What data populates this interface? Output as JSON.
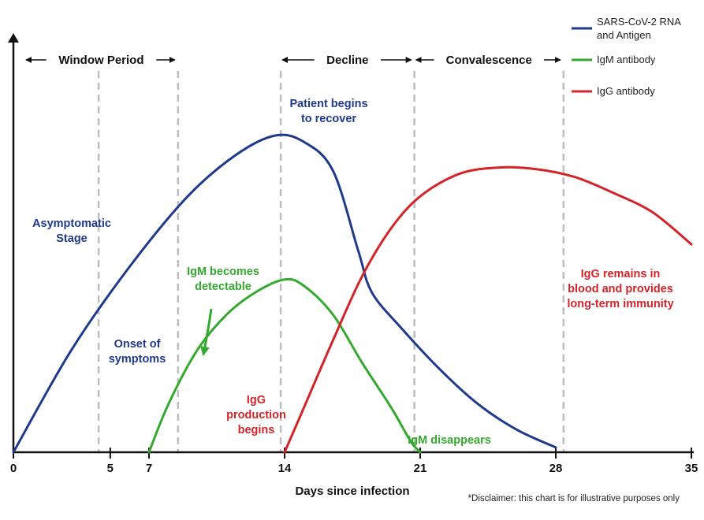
{
  "colors": {
    "rna": "#1f3a8a",
    "igm": "#35a82f",
    "igg": "#d3242a",
    "dashed": "#bdbdbd",
    "axis": "#111111"
  },
  "chart_data": {
    "type": "line",
    "xlabel": "Days since infection",
    "x_ticks": [
      0,
      5,
      7,
      14,
      21,
      28,
      35
    ],
    "xlim": [
      0,
      35
    ],
    "y_axis": "unlabeled (relative level)",
    "ylim": [
      0,
      100
    ],
    "grid": false,
    "legend_position": "top-right",
    "series": [
      {
        "name": "SARS-CoV-2 RNA and Antigen",
        "color": "#1f3a8a",
        "points": [
          [
            0,
            0
          ],
          [
            3,
            32
          ],
          [
            6,
            58
          ],
          [
            9,
            80
          ],
          [
            11.5,
            93
          ],
          [
            13.5,
            99
          ],
          [
            15,
            97
          ],
          [
            16.5,
            88
          ],
          [
            17.8,
            63
          ],
          [
            18.5,
            50
          ],
          [
            20,
            39
          ],
          [
            22,
            26
          ],
          [
            24,
            15
          ],
          [
            26,
            7
          ],
          [
            28,
            1.5
          ]
        ]
      },
      {
        "name": "IgM antibody",
        "color": "#35a82f",
        "points": [
          [
            7,
            0
          ],
          [
            8,
            15
          ],
          [
            9.5,
            32
          ],
          [
            11,
            43
          ],
          [
            12.5,
            50
          ],
          [
            14,
            54
          ],
          [
            15,
            52
          ],
          [
            16.5,
            43
          ],
          [
            18,
            28
          ],
          [
            19.5,
            14
          ],
          [
            20.5,
            3.5
          ],
          [
            21,
            0
          ]
        ]
      },
      {
        "name": "IgG antibody",
        "color": "#d3242a",
        "points": [
          [
            14,
            0
          ],
          [
            15,
            14
          ],
          [
            16.5,
            35
          ],
          [
            18,
            55
          ],
          [
            19.5,
            70
          ],
          [
            21,
            80
          ],
          [
            23,
            87
          ],
          [
            25,
            89
          ],
          [
            27,
            88.5
          ],
          [
            29,
            86
          ],
          [
            31,
            81
          ],
          [
            33,
            75
          ],
          [
            35,
            65
          ]
        ]
      }
    ],
    "periods": [
      {
        "label": "Window Period",
        "from": 0,
        "to": 8.5
      },
      {
        "label": "Decline",
        "from": 13.8,
        "to": 20.7
      },
      {
        "label": "Convalescence",
        "from": 20.7,
        "to": 28.4
      }
    ],
    "dashed_lines": [
      4.4,
      8.5,
      13.8,
      20.7,
      28.4
    ],
    "annotations": [
      {
        "lines": [
          "Window Period"
        ]
      },
      {
        "lines": [
          "Asymptomatic",
          "Stage"
        ]
      },
      {
        "lines": [
          "Onset of",
          "symptoms"
        ]
      },
      {
        "lines": [
          "Patient begins",
          "to recover"
        ]
      },
      {
        "lines": [
          "IgM becomes",
          "detectable"
        ]
      },
      {
        "lines": [
          "IgG",
          "production",
          "begins"
        ]
      },
      {
        "lines": [
          "IgM disappears"
        ]
      },
      {
        "lines": [
          "IgG remains in",
          "blood and provides",
          "long-term immunity"
        ]
      }
    ],
    "disclaimer": "*Disclaimer: this chart is for illustrative purposes only"
  }
}
